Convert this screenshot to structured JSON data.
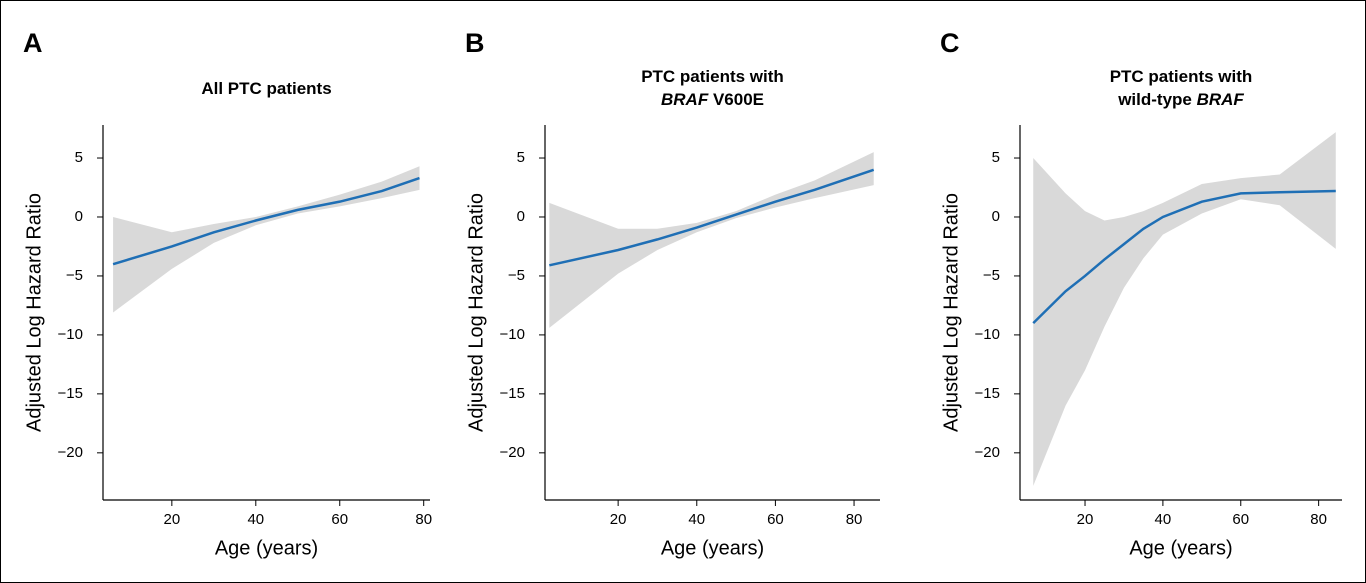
{
  "chart_data": [
    {
      "type": "line",
      "panel": "A",
      "title": [
        [
          {
            "text": "All PTC patients",
            "italic": false
          }
        ]
      ],
      "x_label": "Age (years)",
      "y_label": "Adjusted Log Hazard Ratio",
      "x": [
        6,
        20,
        30,
        40,
        50,
        60,
        70,
        79
      ],
      "values": [
        -4,
        -2.5,
        -1.3,
        -0.3,
        0.6,
        1.3,
        2.2,
        3.3
      ],
      "lower": [
        -8.1,
        -4.4,
        -2.2,
        -0.7,
        0.3,
        0.9,
        1.6,
        2.3
      ],
      "upper": [
        0,
        -1.3,
        -0.6,
        0,
        0.9,
        1.9,
        3.0,
        4.3
      ],
      "color": "#1f6fb5",
      "band_color": "#d9d9d9",
      "xlim": [
        3.6,
        81.5
      ],
      "xticks": [
        20,
        40,
        60,
        80
      ],
      "ylim": [
        -24,
        7.8
      ],
      "yticks": [
        {
          "value": -20,
          "label": "−20"
        },
        {
          "value": -15,
          "label": "−15"
        },
        {
          "value": -10,
          "label": "−10"
        },
        {
          "value": -5,
          "label": "−5"
        },
        0,
        5
      ]
    },
    {
      "type": "line",
      "panel": "B",
      "title": [
        [
          {
            "text": "PTC patients with",
            "italic": false
          }
        ],
        [
          {
            "text": "BRAF",
            "italic": true
          },
          {
            "text": " V600E",
            "italic": false
          }
        ]
      ],
      "x_label": "Age (years)",
      "y_label": "Adjusted Log Hazard Ratio",
      "x": [
        2.5,
        20,
        30,
        40,
        50,
        60,
        70,
        85
      ],
      "values": [
        -4.1,
        -2.8,
        -1.9,
        -0.9,
        0.2,
        1.3,
        2.3,
        4.0
      ],
      "lower": [
        -9.4,
        -4.8,
        -2.8,
        -1.3,
        -0.1,
        0.8,
        1.6,
        2.7
      ],
      "upper": [
        1.2,
        -1.0,
        -1.0,
        -0.5,
        0.5,
        1.9,
        3.1,
        5.5
      ],
      "color": "#1f6fb5",
      "band_color": "#d9d9d9",
      "xlim": [
        1.4,
        86.6
      ],
      "xticks": [
        20,
        40,
        60,
        80
      ],
      "ylim": [
        -24,
        7.8
      ],
      "yticks": [
        {
          "value": -20,
          "label": "−20"
        },
        {
          "value": -15,
          "label": "−15"
        },
        {
          "value": -10,
          "label": "−10"
        },
        {
          "value": -5,
          "label": "−5"
        },
        0,
        5
      ]
    },
    {
      "type": "line",
      "panel": "C",
      "title": [
        [
          {
            "text": "PTC patients with",
            "italic": false
          }
        ],
        [
          {
            "text": "wild-type ",
            "italic": false
          },
          {
            "text": "BRAF",
            "italic": true
          }
        ]
      ],
      "x_label": "Age (years)",
      "y_label": "Adjusted Log Hazard Ratio",
      "x": [
        6.7,
        15,
        20,
        25,
        30,
        35,
        40,
        50,
        60,
        70,
        84.4
      ],
      "values": [
        -9,
        -6.3,
        -5,
        -3.6,
        -2.3,
        -1,
        0,
        1.3,
        2,
        2.1,
        2.2
      ],
      "lower": [
        -22.8,
        -16,
        -13,
        -9.3,
        -6,
        -3.5,
        -1.5,
        0.3,
        1.5,
        1.0,
        -2.7
      ],
      "upper": [
        5,
        2,
        0.5,
        -0.3,
        0,
        0.5,
        1.2,
        2.8,
        3.3,
        3.6,
        7.2
      ],
      "color": "#1f6fb5",
      "band_color": "#d9d9d9",
      "xlim": [
        3.3,
        86
      ],
      "xticks": [
        20,
        40,
        60,
        80
      ],
      "ylim": [
        -24,
        7.8
      ],
      "yticks": [
        {
          "value": -20,
          "label": "−20"
        },
        {
          "value": -15,
          "label": "−15"
        },
        {
          "value": -10,
          "label": "−10"
        },
        {
          "value": -5,
          "label": "−5"
        },
        0,
        5
      ]
    }
  ]
}
